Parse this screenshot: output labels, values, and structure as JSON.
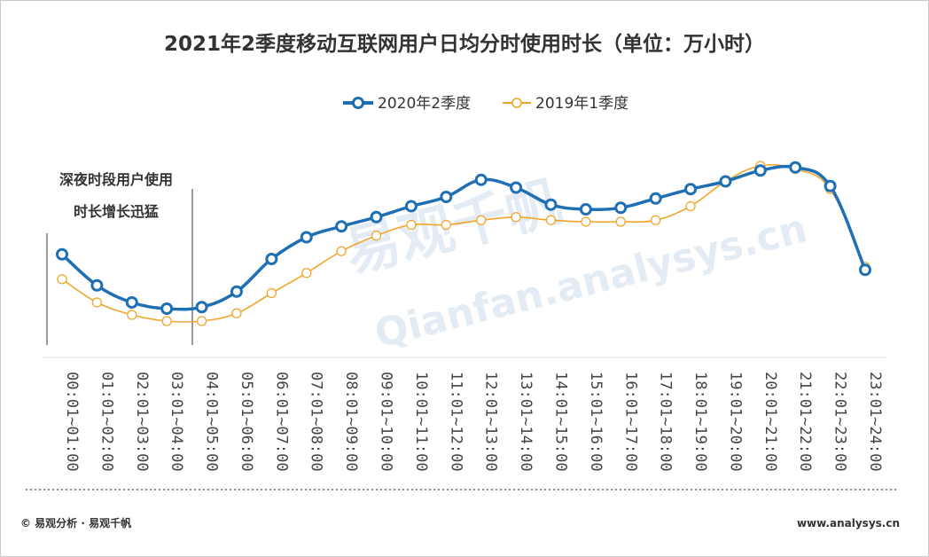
{
  "chart_data": {
    "type": "line",
    "title": "2021年2季度移动互联网用户日均分时使用时长（单位：万小时）",
    "categories": [
      "00:01~01:00",
      "01:01~02:00",
      "02:01~03:00",
      "03:01~04:00",
      "04:01~05:00",
      "05:01~06:00",
      "06:01~07:00",
      "07:01~08:00",
      "08:01~09:00",
      "09:01~10:00",
      "10:01~11:00",
      "11:01~12:00",
      "12:01~13:00",
      "13:01~14:00",
      "14:01~15:00",
      "15:01~16:00",
      "16:01~17:00",
      "17:01~18:00",
      "18:01~19:00",
      "19:01~20:00",
      "20:01~21:00",
      "21:01~22:00",
      "22:01~23:00",
      "23:01~24:00"
    ],
    "series": [
      {
        "name": "2020年2季度",
        "color": "#1f6fb5",
        "values": [
          151,
          131,
          120,
          116,
          117,
          127,
          148,
          162,
          169,
          175,
          182,
          188,
          199,
          194,
          183,
          180,
          181,
          187,
          193,
          198,
          205,
          207,
          195,
          141
        ]
      },
      {
        "name": "2019年1季度",
        "color": "#f0a529",
        "values": [
          135,
          120,
          112,
          108,
          108,
          113,
          126,
          139,
          153,
          163,
          170,
          170,
          173,
          175,
          173,
          172,
          172,
          173,
          182,
          198,
          208,
          206,
          193,
          143
        ]
      }
    ],
    "ylim": [
      80,
      240
    ],
    "legend_position": "top-center",
    "grid": false,
    "annotation": {
      "lines": [
        "深夜时段用户使用",
        "时长增长迅猛"
      ],
      "range": [
        "00:01~01:00",
        "04:01~05:00"
      ]
    }
  },
  "watermark": {
    "logo_text": "易观千帆",
    "url_text": "Qianfan.analysys.cn"
  },
  "footer": {
    "left": "© 易观分析 · 易观千帆",
    "right": "www.analysys.cn"
  }
}
